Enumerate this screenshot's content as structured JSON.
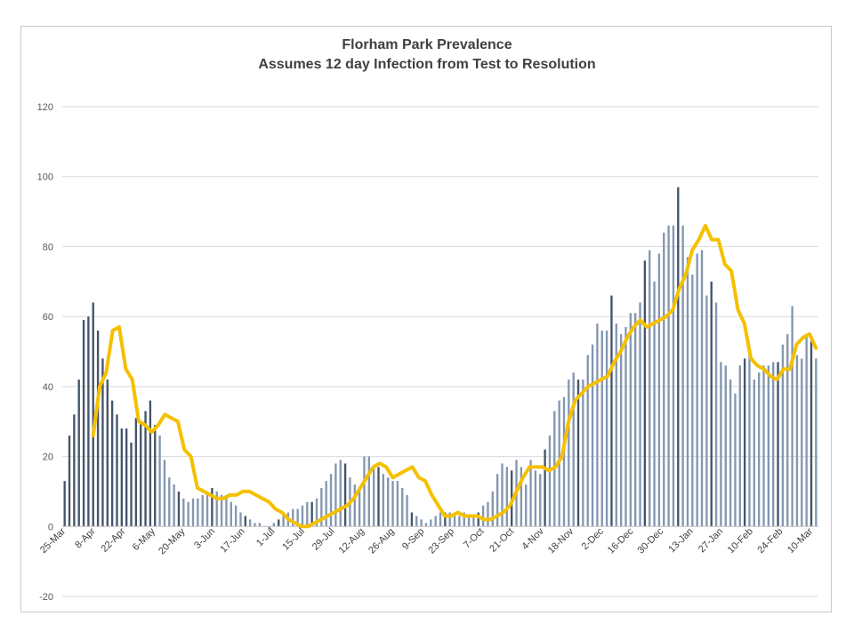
{
  "chart_data": {
    "type": "bar",
    "title": "Florham Park Prevalence",
    "subtitle": "Assumes 12 day Infection from Test to Resolution",
    "xlabel": "",
    "ylabel": "",
    "ylim": [
      -20,
      120
    ],
    "yticks": [
      -20,
      0,
      20,
      40,
      60,
      80,
      100,
      120
    ],
    "grid": true,
    "legend": "none",
    "start_date": "25-Mar",
    "day_step": 2,
    "x_tick_labels": [
      "25-Mar",
      "8-Apr",
      "22-Apr",
      "6-May",
      "20-May",
      "3-Jun",
      "17-Jun",
      "1-Jul",
      "15-Jul",
      "29-Jul",
      "12-Aug",
      "26-Aug",
      "9-Sep",
      "23-Sep",
      "7-Oct",
      "21-Oct",
      "4-Nov",
      "18-Nov",
      "2-Dec",
      "16-Dec",
      "30-Dec",
      "13-Jan",
      "27-Jan",
      "10-Feb",
      "24-Feb",
      "10-Mar"
    ],
    "bar_color": "#8497b0",
    "line_color": "#f5c000",
    "series": [
      {
        "type": "bar",
        "values": [
          13,
          26,
          32,
          42,
          59,
          60,
          64,
          56,
          48,
          42,
          36,
          32,
          28,
          28,
          24,
          31,
          30,
          33,
          36,
          29,
          26,
          19,
          14,
          12,
          10,
          8,
          7,
          8,
          8,
          9,
          10,
          11,
          10,
          9,
          9,
          7,
          6,
          4,
          3,
          2,
          1,
          1,
          0,
          -1,
          1,
          2,
          3,
          4,
          5,
          5,
          6,
          7,
          7,
          8,
          11,
          13,
          15,
          18,
          19,
          18,
          14,
          12,
          11,
          20,
          20,
          17,
          17,
          15,
          14,
          13,
          13,
          11,
          9,
          4,
          3,
          2,
          1,
          2,
          3,
          4,
          4,
          4,
          3,
          3,
          4,
          3,
          3,
          4,
          6,
          7,
          10,
          15,
          18,
          17,
          16,
          19,
          17,
          12,
          19,
          16,
          15,
          22,
          26,
          33,
          36,
          37,
          42,
          44,
          42,
          42,
          49,
          52,
          58,
          56,
          56,
          66,
          58,
          55,
          57,
          61,
          61,
          64,
          76,
          79,
          70,
          78,
          84,
          86,
          86,
          97,
          86,
          77,
          72,
          78,
          79,
          66,
          70,
          64,
          47,
          46,
          42,
          38,
          46,
          48,
          51,
          42,
          44,
          46,
          46,
          47,
          47,
          52,
          55,
          63,
          49,
          48,
          55,
          53,
          48
        ]
      },
      {
        "type": "line",
        "values": [
          26,
          40,
          44,
          56,
          57,
          45,
          42,
          30,
          29,
          27,
          29,
          32,
          31,
          30,
          22,
          20,
          11,
          10,
          9,
          8,
          8,
          9,
          9,
          10,
          10,
          9,
          8,
          7,
          5,
          4,
          2,
          1,
          0,
          0,
          1,
          2,
          3,
          4,
          5,
          6,
          8,
          11,
          14,
          17,
          18,
          17,
          14,
          15,
          16,
          17,
          14,
          13,
          9,
          6,
          3,
          3,
          4,
          3,
          3,
          3,
          2,
          2,
          3,
          4,
          6,
          10,
          14,
          17,
          17,
          17,
          16,
          17,
          20,
          30,
          36,
          38,
          40,
          41,
          42,
          43,
          47,
          50,
          54,
          57,
          59,
          57,
          58,
          59,
          60,
          62,
          68,
          72,
          79,
          82,
          86,
          82,
          82,
          75,
          73,
          62,
          58,
          48,
          46,
          45,
          43,
          42,
          45,
          45,
          52,
          54,
          55,
          51
        ]
      }
    ]
  }
}
